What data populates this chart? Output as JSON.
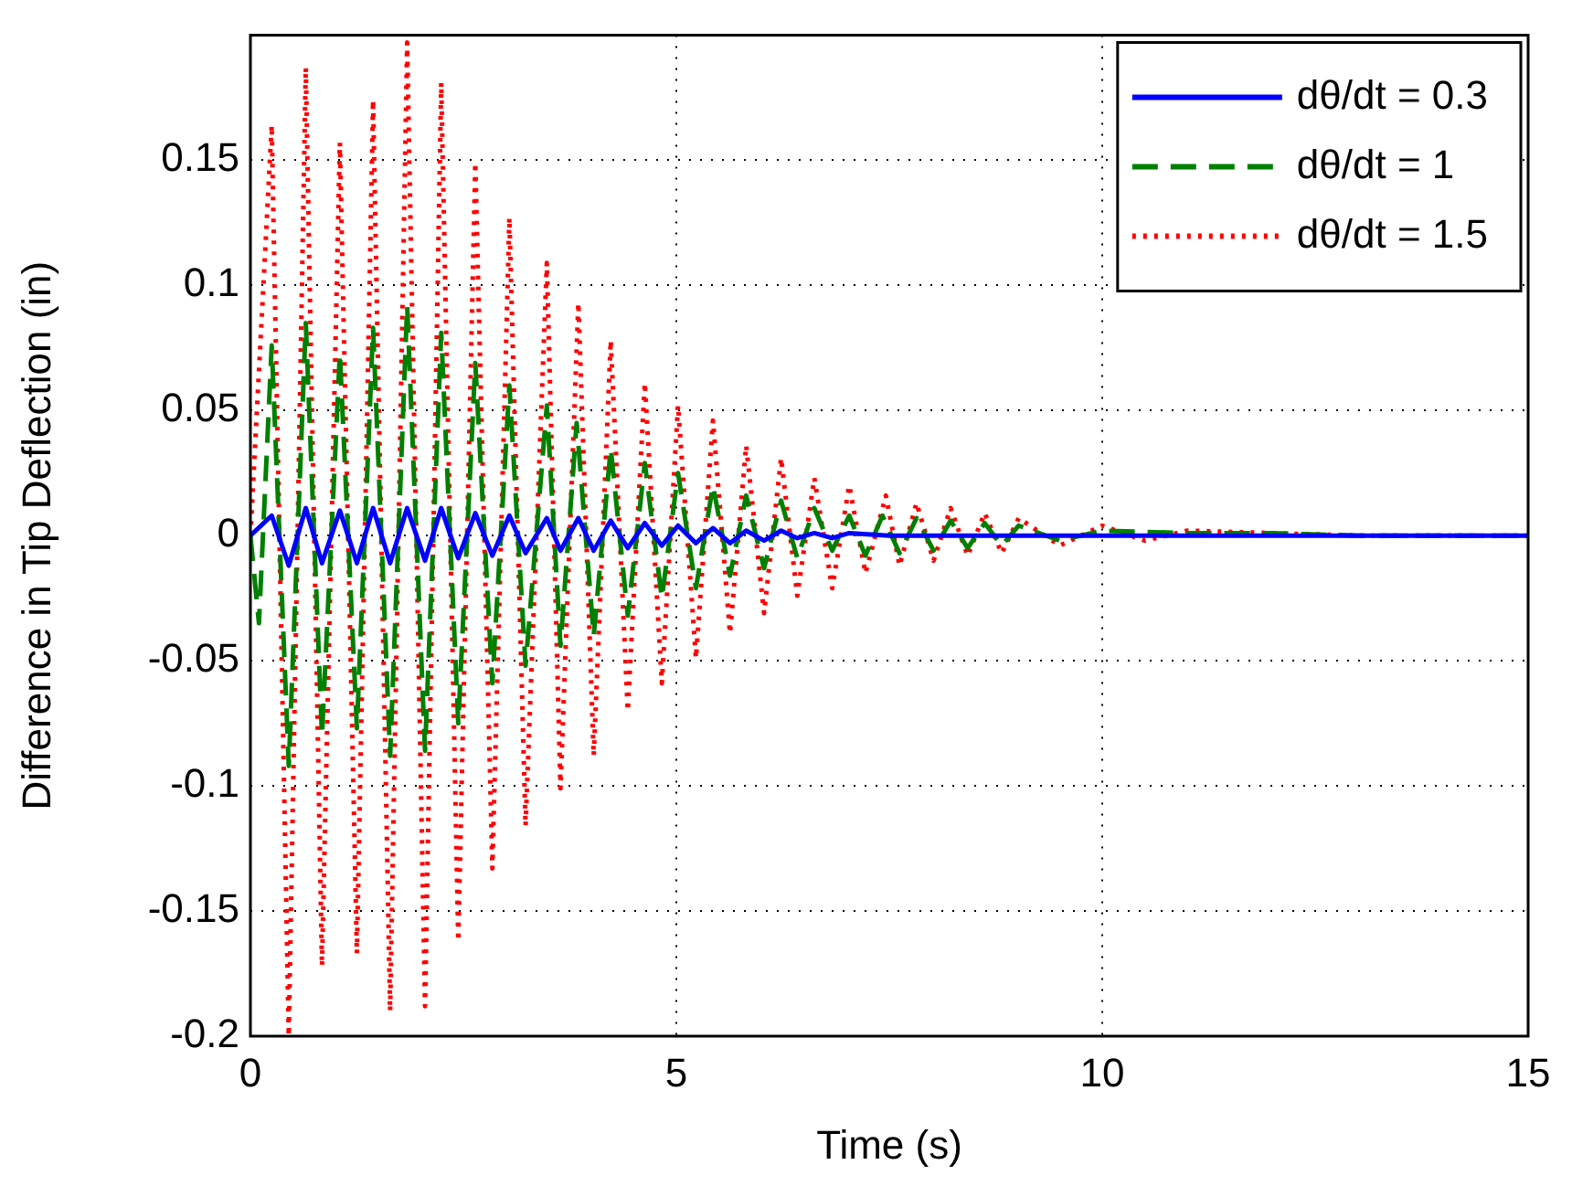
{
  "chart_data": {
    "type": "line",
    "xlabel": "Time (s)",
    "ylabel": "Difference in Tip Deflection (in)",
    "xlim": [
      0,
      15
    ],
    "xticks": [
      0,
      5,
      10,
      15
    ],
    "ylim": [
      -0.2,
      0.2
    ],
    "yticks": [
      -0.2,
      -0.15,
      -0.1,
      -0.05,
      0,
      0.05,
      0.1,
      0.15
    ],
    "grid": true,
    "legend": "top right",
    "marker": "none",
    "series": [
      {
        "name": "dθ/dt = 0.3",
        "color": "#0000ff",
        "line_style": "solid",
        "x": [
          0,
          0.25,
          0.45,
          0.65,
          0.84,
          1.05,
          1.25,
          1.44,
          1.64,
          1.84,
          2.05,
          2.24,
          2.44,
          2.64,
          2.84,
          3.04,
          3.23,
          3.48,
          3.64,
          3.85,
          4.03,
          4.23,
          4.43,
          4.63,
          4.83,
          5.02,
          5.23,
          5.43,
          5.63,
          5.82,
          6.03,
          6.23,
          6.42,
          6.62,
          6.83,
          7.03,
          7.5,
          8,
          9,
          10,
          12,
          15
        ],
        "values": [
          0,
          0.008,
          -0.012,
          0.011,
          -0.011,
          0.01,
          -0.011,
          0.011,
          -0.011,
          0.011,
          -0.01,
          0.011,
          -0.009,
          0.009,
          -0.008,
          0.008,
          -0.007,
          0.007,
          -0.006,
          0.007,
          -0.006,
          0.006,
          -0.005,
          0.005,
          -0.004,
          0.004,
          -0.003,
          0.003,
          -0.003,
          0.002,
          -0.002,
          0.002,
          -0.001,
          0.001,
          -0.001,
          0.001,
          0,
          0,
          0,
          0,
          0,
          0
        ]
      },
      {
        "name": "dθ/dt = 1",
        "color": "#008000",
        "line_style": "dashed",
        "x": [
          0,
          0.1,
          0.25,
          0.45,
          0.65,
          0.84,
          1.05,
          1.25,
          1.44,
          1.64,
          1.84,
          2.05,
          2.24,
          2.44,
          2.64,
          2.84,
          3.04,
          3.23,
          3.48,
          3.64,
          3.83,
          4.03,
          4.23,
          4.43,
          4.63,
          4.83,
          5.02,
          5.23,
          5.43,
          5.63,
          5.82,
          6.03,
          6.23,
          6.42,
          6.62,
          6.83,
          7.03,
          7.22,
          7.42,
          7.62,
          7.82,
          8.02,
          8.22,
          8.42,
          8.62,
          8.82,
          9.02,
          9.5,
          10,
          11,
          12,
          13,
          15
        ],
        "values": [
          0,
          -0.035,
          0.076,
          -0.092,
          0.085,
          -0.08,
          0.073,
          -0.077,
          0.083,
          -0.088,
          0.092,
          -0.086,
          0.081,
          -0.075,
          0.069,
          -0.059,
          0.06,
          -0.052,
          0.052,
          -0.044,
          0.045,
          -0.04,
          0.035,
          -0.032,
          0.029,
          -0.025,
          0.025,
          -0.021,
          0.02,
          -0.016,
          0.016,
          -0.013,
          0.014,
          -0.009,
          0.011,
          -0.006,
          0.008,
          -0.008,
          0.008,
          -0.007,
          0.007,
          -0.006,
          0.006,
          -0.005,
          0.005,
          -0.004,
          0.004,
          -0.002,
          0.002,
          0.001,
          0.001,
          0,
          0
        ]
      },
      {
        "name": "dθ/dt = 1.5",
        "color": "#ff0000",
        "line_style": "dotted",
        "x": [
          0,
          0.25,
          0.45,
          0.65,
          0.84,
          1.05,
          1.25,
          1.44,
          1.64,
          1.84,
          2.05,
          2.24,
          2.44,
          2.64,
          2.84,
          3.04,
          3.23,
          3.48,
          3.64,
          3.85,
          4.03,
          4.23,
          4.43,
          4.63,
          4.83,
          5.02,
          5.23,
          5.43,
          5.63,
          5.82,
          6.03,
          6.23,
          6.42,
          6.62,
          6.83,
          7.03,
          7.22,
          7.46,
          7.62,
          7.82,
          8.02,
          8.22,
          8.42,
          8.62,
          8.82,
          9.02,
          9.5,
          10,
          10.5,
          11,
          12,
          13,
          15
        ],
        "values": [
          0,
          0.164,
          -0.2,
          0.187,
          -0.172,
          0.157,
          -0.167,
          0.174,
          -0.19,
          0.197,
          -0.188,
          0.181,
          -0.162,
          0.149,
          -0.133,
          0.127,
          -0.116,
          0.109,
          -0.101,
          0.093,
          -0.088,
          0.078,
          -0.07,
          0.061,
          -0.059,
          0.052,
          -0.049,
          0.046,
          -0.039,
          0.036,
          -0.031,
          0.031,
          -0.024,
          0.023,
          -0.021,
          0.02,
          -0.015,
          0.016,
          -0.012,
          0.013,
          -0.01,
          0.011,
          -0.008,
          0.009,
          -0.007,
          0.007,
          -0.004,
          0.004,
          -0.002,
          0.002,
          0.001,
          0,
          0
        ]
      }
    ]
  }
}
